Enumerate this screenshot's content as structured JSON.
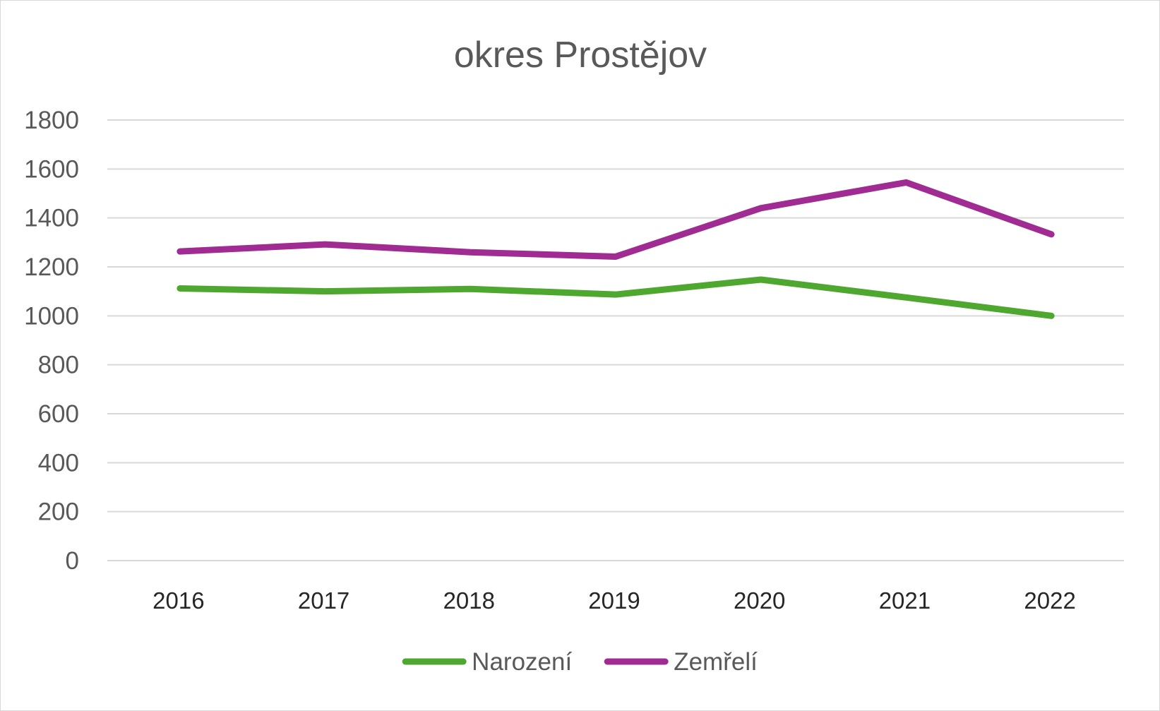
{
  "chart_data": {
    "type": "line",
    "title": "okres Prostějov",
    "xlabel": "",
    "ylabel": "",
    "categories": [
      "2016",
      "2017",
      "2018",
      "2019",
      "2020",
      "2021",
      "2022"
    ],
    "ylim": [
      0,
      1800
    ],
    "yticks": [
      "0",
      "200",
      "400",
      "600",
      "800",
      "1000",
      "1200",
      "1400",
      "1600",
      "1800"
    ],
    "grid": true,
    "legend_position": "bottom",
    "series": [
      {
        "name": "Narození",
        "color": "#4ea72e",
        "values": [
          1112,
          1100,
          1110,
          1087,
          1148,
          1075,
          1000
        ]
      },
      {
        "name": "Zemřelí",
        "color": "#a02b93",
        "values": [
          1263,
          1292,
          1260,
          1242,
          1440,
          1545,
          1333
        ]
      }
    ]
  }
}
